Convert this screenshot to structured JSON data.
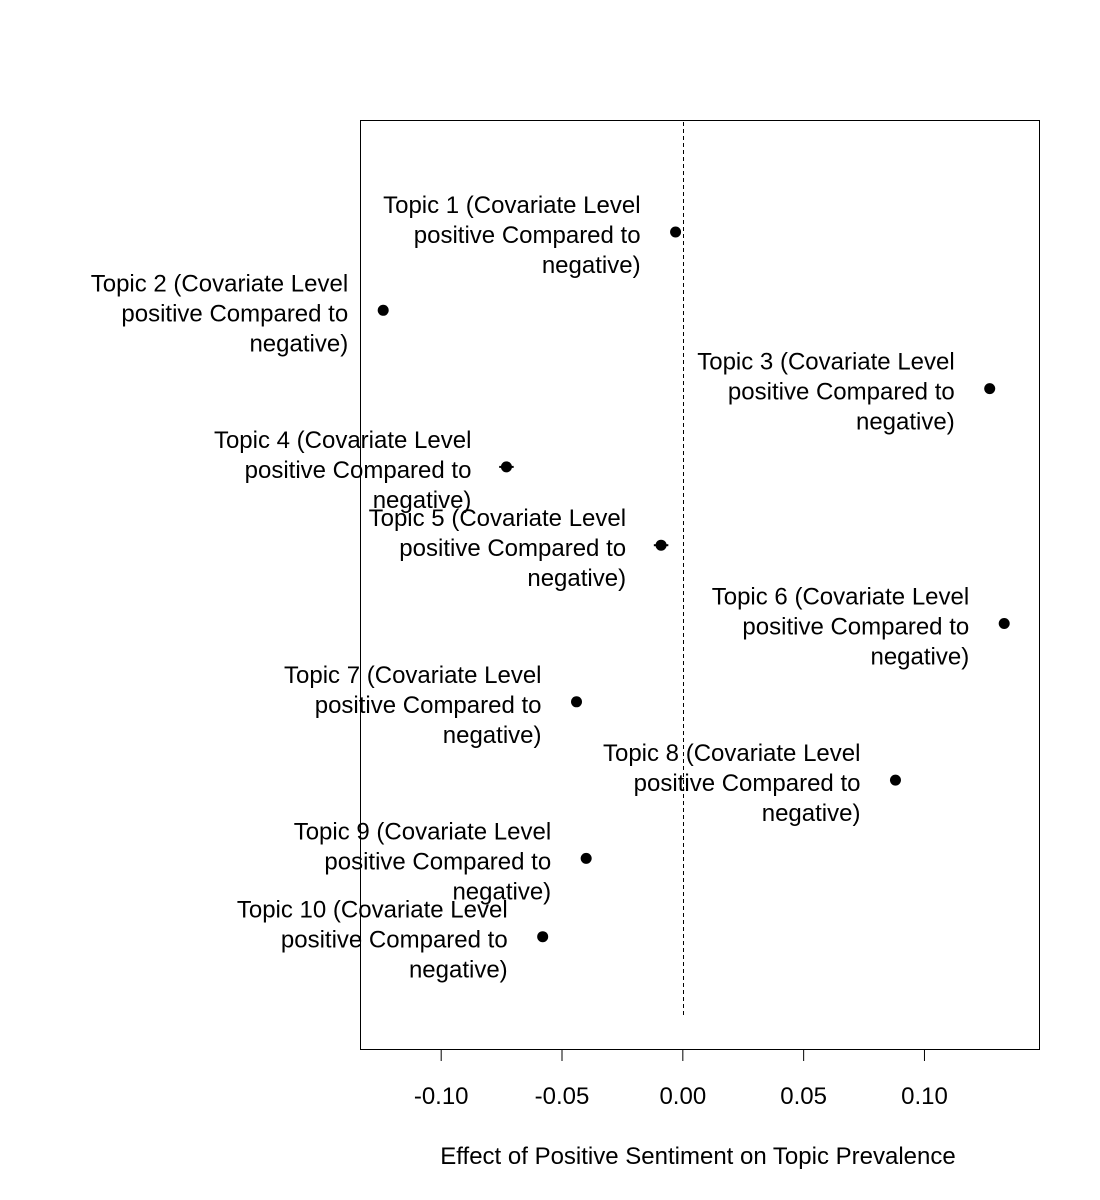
{
  "chart_data": {
    "type": "scatter",
    "title": "",
    "xlabel": "Effect of Positive Sentiment on Topic Prevalence",
    "ylabel": "",
    "xlim": [
      -0.1336,
      0.1474
    ],
    "x_ticks": [
      -0.1,
      -0.05,
      0.0,
      0.05,
      0.1
    ],
    "x_tick_labels": [
      "-0.10",
      "-0.05",
      "0.00",
      "0.05",
      "0.10"
    ],
    "reference_line": {
      "x": 0.0,
      "style": "dashed"
    },
    "grid": false,
    "legend": "none",
    "point_color": "#000000",
    "points": [
      {
        "label": "Topic 1 (Covariate Level positive Compared to negative)",
        "label_lines": [
          "Topic 1 (Covariate Level",
          "positive Compared to",
          "negative)"
        ],
        "estimate": -0.003,
        "ci": [
          -0.005,
          -0.001
        ]
      },
      {
        "label": "Topic 2 (Covariate Level positive Compared to negative)",
        "label_lines": [
          "Topic 2 (Covariate Level",
          "positive Compared to",
          "negative)"
        ],
        "estimate": -0.124,
        "ci": [
          -0.126,
          -0.122
        ]
      },
      {
        "label": "Topic 3 (Covariate Level positive Compared to negative)",
        "label_lines": [
          "Topic 3 (Covariate Level",
          "positive Compared to",
          "negative)"
        ],
        "estimate": 0.127,
        "ci": [
          0.125,
          0.129
        ]
      },
      {
        "label": "Topic 4 (Covariate Level positive Compared to negative)",
        "label_lines": [
          "Topic 4 (Covariate Level",
          "positive Compared to",
          "negative)"
        ],
        "estimate": -0.073,
        "ci": [
          -0.076,
          -0.07
        ]
      },
      {
        "label": "Topic 5 (Covariate Level positive Compared to negative)",
        "label_lines": [
          "Topic 5 (Covariate Level",
          "positive Compared to",
          "negative)"
        ],
        "estimate": -0.009,
        "ci": [
          -0.012,
          -0.006
        ]
      },
      {
        "label": "Topic 6 (Covariate Level positive Compared to negative)",
        "label_lines": [
          "Topic 6 (Covariate Level",
          "positive Compared to",
          "negative)"
        ],
        "estimate": 0.133,
        "ci": [
          0.131,
          0.135
        ]
      },
      {
        "label": "Topic 7 (Covariate Level positive Compared to negative)",
        "label_lines": [
          "Topic 7 (Covariate Level",
          "positive Compared to",
          "negative)"
        ],
        "estimate": -0.044,
        "ci": [
          -0.046,
          -0.042
        ]
      },
      {
        "label": "Topic 8 (Covariate Level positive Compared to negative)",
        "label_lines": [
          "Topic 8 (Covariate Level",
          "positive Compared to",
          "negative)"
        ],
        "estimate": 0.088,
        "ci": [
          0.086,
          0.09
        ]
      },
      {
        "label": "Topic 9 (Covariate Level positive Compared to negative)",
        "label_lines": [
          "Topic 9 (Covariate Level",
          "positive Compared to",
          "negative)"
        ],
        "estimate": -0.04,
        "ci": [
          -0.042,
          -0.038
        ]
      },
      {
        "label": "Topic 10 (Covariate Level positive Compared to negative)",
        "label_lines": [
          "Topic 10 (Covariate Level",
          "positive Compared to",
          "negative)"
        ],
        "estimate": -0.058,
        "ci": [
          -0.06,
          -0.056
        ]
      }
    ]
  }
}
